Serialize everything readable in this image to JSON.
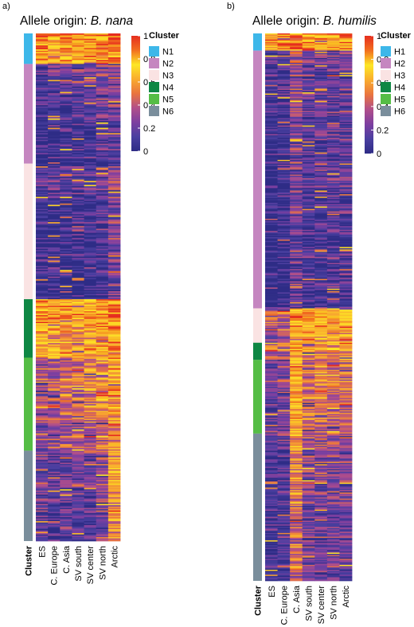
{
  "chart_data": [
    {
      "type": "heatmap",
      "panel_label": "a)",
      "title_prefix": "Allele origin:",
      "title_species": "B. nana",
      "columns": [
        "Cluster",
        "ES",
        "C. Europe",
        "C. Asia",
        "SV south",
        "SV center",
        "SV north",
        "Arctic"
      ],
      "clusters": [
        {
          "name": "N1",
          "color": "#3DB7E9",
          "rows": 23,
          "mean_values": [
            0.87,
            0.72,
            0.78,
            0.8,
            0.82,
            0.8,
            0.92
          ]
        },
        {
          "name": "N2",
          "color": "#C586C0",
          "rows": 75,
          "mean_values": [
            0.08,
            0.1,
            0.1,
            0.12,
            0.13,
            0.2,
            0.22
          ]
        },
        {
          "name": "N3",
          "color": "#FAE3E3",
          "rows": 102,
          "mean_values": [
            0.06,
            0.06,
            0.07,
            0.07,
            0.08,
            0.1,
            0.26
          ]
        },
        {
          "name": "N4",
          "color": "#0E8744",
          "rows": 44,
          "mean_values": [
            0.7,
            0.67,
            0.64,
            0.68,
            0.72,
            0.74,
            0.84
          ]
        },
        {
          "name": "N5",
          "color": "#55BD45",
          "rows": 70,
          "mean_values": [
            0.33,
            0.36,
            0.4,
            0.46,
            0.5,
            0.54,
            0.66
          ]
        },
        {
          "name": "N6",
          "color": "#7A8E9C",
          "rows": 68,
          "mean_values": [
            0.18,
            0.12,
            0.16,
            0.16,
            0.18,
            0.22,
            0.58
          ]
        }
      ],
      "legend": {
        "title": "Cluster",
        "entries": [
          "N1",
          "N2",
          "N3",
          "N4",
          "N5",
          "N6"
        ]
      },
      "colorbar": {
        "min": 0,
        "max": 1,
        "ticks": [
          0,
          0.2,
          0.4,
          0.6,
          0.8,
          1
        ],
        "colors": [
          "#2E2C86",
          "#4A3FA0",
          "#7D3FA0",
          "#B14F8A",
          "#E9743F",
          "#F9AC2E",
          "#FDE725",
          "#F26F1F",
          "#E62E1F"
        ]
      }
    },
    {
      "type": "heatmap",
      "panel_label": "b)",
      "title_prefix": "Allele origin:",
      "title_species": "B. humilis",
      "columns": [
        "Cluster",
        "ES",
        "C. Europe",
        "C. Asia",
        "SV south",
        "SV center",
        "SV north",
        "Arctic"
      ],
      "clusters": [
        {
          "name": "H1",
          "color": "#3DB7E9",
          "rows": 14,
          "mean_values": [
            0.72,
            0.82,
            0.9,
            0.82,
            0.8,
            0.8,
            0.85
          ]
        },
        {
          "name": "H2",
          "color": "#C586C0",
          "rows": 210,
          "mean_values": [
            0.05,
            0.06,
            0.24,
            0.14,
            0.14,
            0.16,
            0.16
          ]
        },
        {
          "name": "H3",
          "color": "#FAE3E3",
          "rows": 28,
          "mean_values": [
            0.35,
            0.4,
            0.72,
            0.72,
            0.7,
            0.68,
            0.68
          ]
        },
        {
          "name": "H4",
          "color": "#0E8744",
          "rows": 14,
          "mean_values": [
            0.45,
            0.48,
            0.72,
            0.56,
            0.56,
            0.56,
            0.58
          ]
        },
        {
          "name": "H5",
          "color": "#55BD45",
          "rows": 60,
          "mean_values": [
            0.2,
            0.25,
            0.7,
            0.46,
            0.48,
            0.44,
            0.44
          ]
        },
        {
          "name": "H6",
          "color": "#7A8E9C",
          "rows": 120,
          "mean_values": [
            0.1,
            0.14,
            0.5,
            0.24,
            0.24,
            0.24,
            0.24
          ]
        }
      ],
      "legend": {
        "title": "Cluster",
        "entries": [
          "H1",
          "H2",
          "H3",
          "H4",
          "H5",
          "H6"
        ]
      },
      "colorbar": {
        "min": 0,
        "max": 1,
        "ticks": [
          0,
          0.2,
          0.4,
          0.6,
          0.8,
          1
        ],
        "colors": [
          "#2E2C86",
          "#4A3FA0",
          "#7D3FA0",
          "#B14F8A",
          "#E9743F",
          "#F9AC2E",
          "#FDE725",
          "#F26F1F",
          "#E62E1F"
        ]
      }
    }
  ]
}
